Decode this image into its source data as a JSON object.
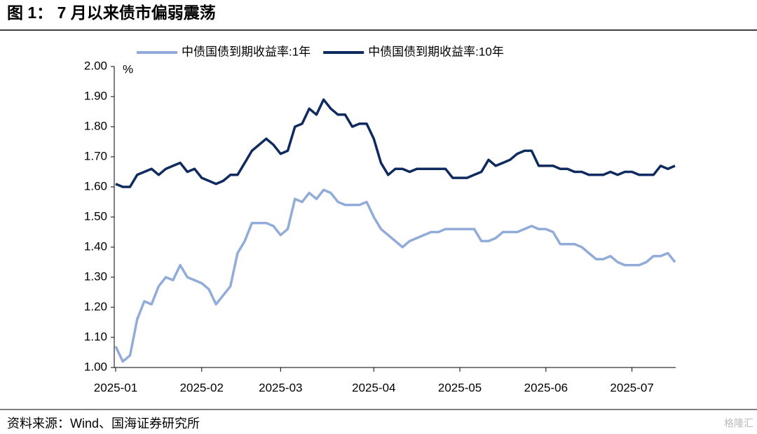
{
  "chart_data": {
    "type": "line",
    "title": "图 1：  7 月以来债市偏弱震荡",
    "y_label": "%",
    "source": "资料来源：Wind、国海证券研究所",
    "watermark": "格隆汇",
    "categories": [
      "2025-01",
      null,
      null,
      null,
      null,
      null,
      null,
      null,
      null,
      null,
      null,
      null,
      "2025-02",
      null,
      null,
      null,
      null,
      null,
      null,
      null,
      null,
      null,
      null,
      "2025-03",
      null,
      null,
      null,
      null,
      null,
      null,
      null,
      null,
      null,
      null,
      null,
      null,
      "2025-04",
      null,
      null,
      null,
      null,
      null,
      null,
      null,
      null,
      null,
      null,
      null,
      "2025-05",
      null,
      null,
      null,
      null,
      null,
      null,
      null,
      null,
      null,
      null,
      null,
      "2025-06",
      null,
      null,
      null,
      null,
      null,
      null,
      null,
      null,
      null,
      null,
      null,
      "2025-07",
      null,
      null,
      null,
      null,
      null,
      null
    ],
    "series": [
      {
        "name": "中债国债到期收益率:1年",
        "color": "#92acd9",
        "values": [
          1.07,
          1.02,
          1.04,
          1.16,
          1.22,
          1.21,
          1.27,
          1.3,
          1.29,
          1.34,
          1.3,
          1.29,
          1.28,
          1.26,
          1.21,
          1.24,
          1.27,
          1.38,
          1.42,
          1.48,
          1.48,
          1.48,
          1.47,
          1.44,
          1.46,
          1.56,
          1.55,
          1.58,
          1.56,
          1.59,
          1.58,
          1.55,
          1.54,
          1.54,
          1.54,
          1.55,
          1.5,
          1.46,
          1.44,
          1.42,
          1.4,
          1.42,
          1.43,
          1.44,
          1.45,
          1.45,
          1.46,
          1.46,
          1.46,
          1.46,
          1.46,
          1.42,
          1.42,
          1.43,
          1.45,
          1.45,
          1.45,
          1.46,
          1.47,
          1.46,
          1.46,
          1.45,
          1.41,
          1.41,
          1.41,
          1.4,
          1.38,
          1.36,
          1.36,
          1.37,
          1.35,
          1.34,
          1.34,
          1.34,
          1.35,
          1.37,
          1.37,
          1.38,
          1.35
        ]
      },
      {
        "name": "中债国债到期收益率:10年",
        "color": "#0f2a5f",
        "values": [
          1.61,
          1.6,
          1.6,
          1.64,
          1.65,
          1.66,
          1.64,
          1.66,
          1.67,
          1.68,
          1.65,
          1.66,
          1.63,
          1.62,
          1.61,
          1.62,
          1.64,
          1.64,
          1.68,
          1.72,
          1.74,
          1.76,
          1.74,
          1.71,
          1.72,
          1.8,
          1.81,
          1.86,
          1.84,
          1.89,
          1.86,
          1.84,
          1.84,
          1.8,
          1.81,
          1.81,
          1.76,
          1.68,
          1.64,
          1.66,
          1.66,
          1.65,
          1.66,
          1.66,
          1.66,
          1.66,
          1.66,
          1.63,
          1.63,
          1.63,
          1.64,
          1.65,
          1.69,
          1.67,
          1.68,
          1.69,
          1.71,
          1.72,
          1.72,
          1.67,
          1.67,
          1.67,
          1.66,
          1.66,
          1.65,
          1.65,
          1.64,
          1.64,
          1.64,
          1.65,
          1.64,
          1.65,
          1.65,
          1.64,
          1.64,
          1.64,
          1.67,
          1.66,
          1.67
        ]
      }
    ],
    "ylim": [
      1.0,
      2.0
    ],
    "yticks": [
      {
        "value": 1.0,
        "label": "1.00"
      },
      {
        "value": 1.1,
        "label": "1.10"
      },
      {
        "value": 1.2,
        "label": "1.20"
      },
      {
        "value": 1.3,
        "label": "1.30"
      },
      {
        "value": 1.4,
        "label": "1.40"
      },
      {
        "value": 1.5,
        "label": "1.50"
      },
      {
        "value": 1.6,
        "label": "1.60"
      },
      {
        "value": 1.7,
        "label": "1.70"
      },
      {
        "value": 1.8,
        "label": "1.80"
      },
      {
        "value": 1.9,
        "label": "1.90"
      },
      {
        "value": 2.0,
        "label": "2.00"
      }
    ],
    "grid": false,
    "legend": "top"
  }
}
